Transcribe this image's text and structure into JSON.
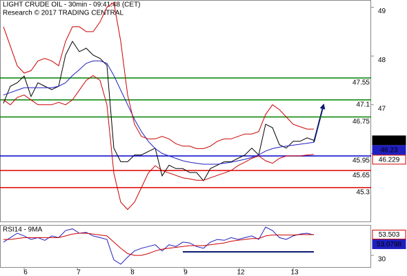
{
  "chart_data": [
    {
      "type": "line",
      "title": "LIGHT CRUDE OIL - 30min - 09:41:48 (CET)",
      "subtitle": "Research © 2017 TRADING CENTRAL",
      "x": [
        0,
        1,
        2,
        3,
        4,
        5,
        6,
        7,
        8,
        9,
        10,
        11,
        12,
        13,
        14,
        15,
        16,
        17,
        18,
        19,
        20,
        21,
        22,
        23,
        24,
        25,
        26,
        27,
        28,
        29,
        30,
        31,
        32,
        33,
        34,
        35,
        36,
        37,
        38,
        39,
        40,
        41,
        42,
        43,
        44,
        45
      ],
      "xlim": [
        -0.5,
        53.3
      ],
      "ylim": [
        44.59,
        49.15
      ],
      "yticks": [
        46,
        47,
        48,
        49
      ],
      "series": [
        {
          "color": "#000000",
          "values": [
            47.03,
            47.38,
            47.45,
            47.59,
            47.17,
            47.45,
            47.38,
            47.31,
            47.38,
            48.02,
            48.3,
            48.09,
            48.16,
            48.02,
            47.95,
            47.81,
            46.11,
            45.83,
            45.83,
            45.97,
            45.97,
            46.04,
            46.11,
            45.54,
            45.76,
            45.69,
            45.69,
            45.61,
            45.61,
            45.44,
            45.69,
            45.76,
            45.83,
            45.83,
            45.9,
            45.97,
            46.11,
            45.97,
            46.6,
            46.53,
            46.18,
            46.11,
            46.25,
            46.25,
            46.32,
            46.27
          ]
        },
        {
          "color": "#1f1fbf",
          "values": [
            47.2,
            47.25,
            47.3,
            47.35,
            47.35,
            47.35,
            47.35,
            47.35,
            47.38,
            47.45,
            47.6,
            47.72,
            47.85,
            47.9,
            47.9,
            47.85,
            47.6,
            47.3,
            47.0,
            46.7,
            46.45,
            46.25,
            46.1,
            46.0,
            45.95,
            45.9,
            45.85,
            45.82,
            45.8,
            45.78,
            45.78,
            45.78,
            45.8,
            45.82,
            45.85,
            45.88,
            45.92,
            45.97,
            46.05,
            46.1,
            46.13,
            46.15,
            46.17,
            46.19,
            46.21,
            46.23
          ]
        },
        {
          "color": "#cc0000",
          "values": [
            48.6,
            48.2,
            47.8,
            47.65,
            47.7,
            47.9,
            47.95,
            47.9,
            47.8,
            48.3,
            48.6,
            48.6,
            48.5,
            48.5,
            48.7,
            49.0,
            49.1,
            48.3,
            47.2,
            46.6,
            46.35,
            46.3,
            46.3,
            46.35,
            46.3,
            46.2,
            46.15,
            46.15,
            46.1,
            46.1,
            46.15,
            46.25,
            46.3,
            46.3,
            46.35,
            46.4,
            46.4,
            46.45,
            46.8,
            47.0,
            46.9,
            46.75,
            46.6,
            46.55,
            46.5,
            46.5
          ]
        },
        {
          "color": "#cc0000",
          "values": [
            47.1,
            47.0,
            47.15,
            47.2,
            47.1,
            47.0,
            47.0,
            47.0,
            47.05,
            47.0,
            47.1,
            47.3,
            47.5,
            47.6,
            47.5,
            47.0,
            45.6,
            45.0,
            44.85,
            45.0,
            45.3,
            45.6,
            45.75,
            45.65,
            45.6,
            45.55,
            45.5,
            45.48,
            45.45,
            45.45,
            45.5,
            45.55,
            45.6,
            45.65,
            45.75,
            45.82,
            45.9,
            45.95,
            45.85,
            45.8,
            45.9,
            45.95,
            45.95,
            45.95,
            45.97,
            45.98
          ]
        }
      ],
      "levels": [
        {
          "value": 47.55,
          "color": "#008000"
        },
        {
          "value": 47.1,
          "color": "#008000"
        },
        {
          "value": 46.75,
          "color": "#008000"
        },
        {
          "value": 45.95,
          "color": "#0000cc"
        },
        {
          "value": 45.65,
          "color": "#dd0000"
        },
        {
          "value": 45.3,
          "color": "#dd0000"
        }
      ],
      "price_labels": [
        {
          "value": 46.27,
          "color": "#000000",
          "filled": true
        },
        {
          "value": 46.23,
          "color": "#1f1fbf",
          "filled": true
        },
        {
          "value": 46.229,
          "color": "#cc0000",
          "filled": false
        }
      ]
    },
    {
      "type": "line",
      "title": "RSI14 - 9MA",
      "x": [
        0,
        1,
        2,
        3,
        4,
        5,
        6,
        7,
        8,
        9,
        10,
        11,
        12,
        13,
        14,
        15,
        16,
        17,
        18,
        19,
        20,
        21,
        22,
        23,
        24,
        25,
        26,
        27,
        28,
        29,
        30,
        31,
        32,
        33,
        34,
        35,
        36,
        37,
        38,
        39,
        40,
        41,
        42,
        43,
        44,
        45
      ],
      "xlim": [
        -0.5,
        53.3
      ],
      "xticks": [
        {
          "value": 3,
          "label": "6"
        },
        {
          "value": 10.7,
          "label": "7"
        },
        {
          "value": 18.5,
          "label": "8"
        },
        {
          "value": 26.2,
          "label": "9"
        },
        {
          "value": 34.2,
          "label": "12"
        },
        {
          "value": 42,
          "label": "13"
        }
      ],
      "ylim": [
        16,
        64.4
      ],
      "yticks": [
        30
      ],
      "series": [
        {
          "color": "#1f1fbf",
          "values": [
            45,
            50,
            55,
            52,
            48,
            50,
            47,
            52,
            50,
            58,
            60,
            55,
            56,
            52,
            50,
            48,
            25,
            20,
            28,
            35,
            38,
            40,
            42,
            35,
            42,
            40,
            45,
            44,
            40,
            38,
            45,
            48,
            47,
            50,
            48,
            50,
            52,
            48,
            62,
            58,
            50,
            48,
            52,
            54,
            55,
            53.0798
          ]
        },
        {
          "color": "#cc0000",
          "values": [
            48,
            48,
            49,
            50,
            50,
            50,
            50,
            50,
            50,
            52,
            54,
            55,
            55,
            54,
            53,
            52,
            45,
            38,
            32,
            30,
            30,
            32,
            35,
            37,
            38,
            39,
            40,
            41,
            41,
            41,
            42,
            43,
            44,
            46,
            47,
            48,
            49,
            49,
            52,
            53,
            53,
            53,
            53,
            53.5,
            53.5,
            53.503
          ]
        }
      ],
      "price_labels": [
        {
          "value": 53.503,
          "color": "#cc0000",
          "filled": false
        },
        {
          "value": 53.0798,
          "color": "#1f1fbf",
          "filled": true
        }
      ]
    }
  ]
}
